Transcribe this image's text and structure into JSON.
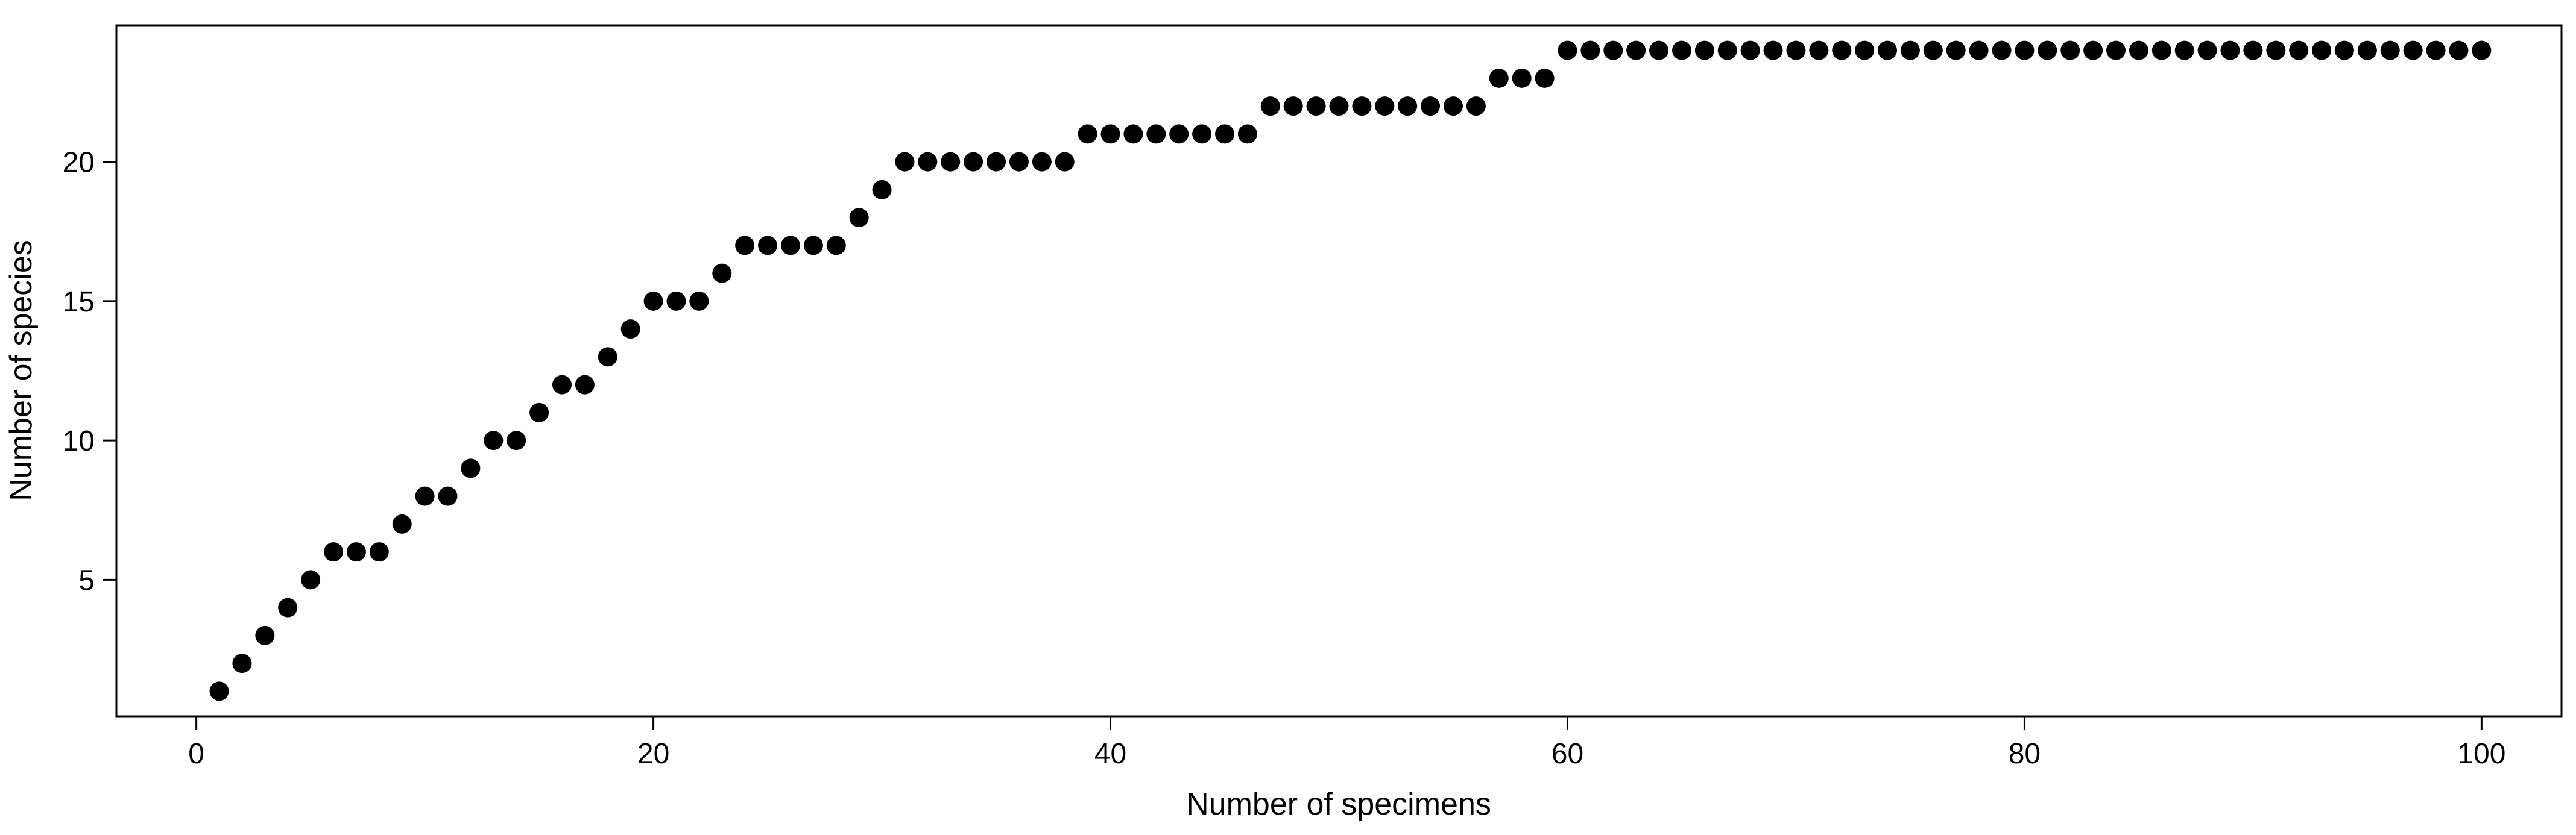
{
  "chart_data": {
    "type": "scatter",
    "xlabel": "Number of specimens",
    "ylabel": "Number of species",
    "xlim": [
      -3.5,
      103.5
    ],
    "ylim": [
      0.1,
      24.9
    ],
    "x_ticks": [
      0,
      20,
      40,
      60,
      80,
      100
    ],
    "y_ticks": [
      5,
      10,
      15,
      20
    ],
    "x_tick_labels": [
      "0",
      "20",
      "40",
      "60",
      "80",
      "100"
    ],
    "y_tick_labels": [
      "5",
      "10",
      "15",
      "20"
    ],
    "grid": false,
    "legend": "none",
    "marker": "filled-circle",
    "marker_color": "#000000",
    "series": [
      {
        "x": [
          1,
          2,
          3,
          4,
          5,
          6,
          7,
          8,
          9,
          10,
          11,
          12,
          13,
          14,
          15,
          16,
          17,
          18,
          19,
          20,
          21,
          22,
          23,
          24,
          25,
          26,
          27,
          28,
          29,
          30,
          31,
          32,
          33,
          34,
          35,
          36,
          37,
          38,
          39,
          40,
          41,
          42,
          43,
          44,
          45,
          46,
          47,
          48,
          49,
          50,
          51,
          52,
          53,
          54,
          55,
          56,
          57,
          58,
          59,
          60,
          61,
          62,
          63,
          64,
          65,
          66,
          67,
          68,
          69,
          70,
          71,
          72,
          73,
          74,
          75,
          76,
          77,
          78,
          79,
          80,
          81,
          82,
          83,
          84,
          85,
          86,
          87,
          88,
          89,
          90,
          91,
          92,
          93,
          94,
          95,
          96,
          97,
          98,
          99,
          100
        ],
        "values": [
          1,
          2,
          3,
          4,
          5,
          6,
          6,
          6,
          7,
          8,
          8,
          9,
          10,
          10,
          11,
          12,
          12,
          13,
          14,
          15,
          15,
          15,
          16,
          17,
          17,
          17,
          17,
          17,
          18,
          19,
          20,
          20,
          20,
          20,
          20,
          20,
          20,
          20,
          21,
          21,
          21,
          21,
          21,
          21,
          21,
          21,
          22,
          22,
          22,
          22,
          22,
          22,
          22,
          22,
          22,
          22,
          23,
          23,
          23,
          24,
          24,
          24,
          24,
          24,
          24,
          24,
          24,
          24,
          24,
          24,
          24,
          24,
          24,
          24,
          24,
          24,
          24,
          24,
          24,
          24,
          24,
          24,
          24,
          24,
          24,
          24,
          24,
          24,
          24,
          24,
          24,
          24,
          24,
          24,
          24,
          24,
          24,
          24,
          24,
          24
        ]
      }
    ]
  }
}
